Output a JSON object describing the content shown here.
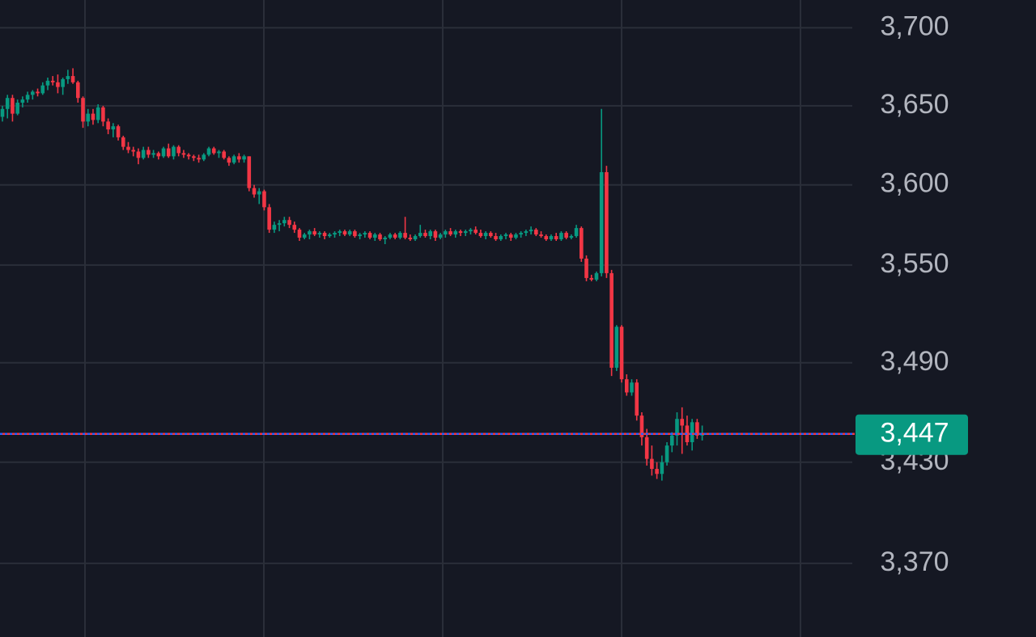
{
  "chart_data": {
    "type": "candlestick",
    "log_scale": true,
    "grid": true,
    "up_color": "#089981",
    "down_color": "#f23645",
    "ylim": [
      3327,
      3718
    ],
    "yticks": [
      {
        "value": 3700,
        "label": "3,700"
      },
      {
        "value": 3650,
        "label": "3,650"
      },
      {
        "value": 3600,
        "label": "3,600"
      },
      {
        "value": 3550,
        "label": "3,550"
      },
      {
        "value": 3490,
        "label": "3,490"
      },
      {
        "value": 3430,
        "label": "3,430"
      },
      {
        "value": 3370,
        "label": "3,370"
      }
    ],
    "last_price": {
      "value": 3447,
      "label": "3,447"
    },
    "candles": [
      [
        3643,
        3650,
        3640,
        3648
      ],
      [
        3648,
        3657,
        3642,
        3655
      ],
      [
        3655,
        3657,
        3640,
        3645
      ],
      [
        3645,
        3654,
        3644,
        3652
      ],
      [
        3652,
        3656,
        3649,
        3654
      ],
      [
        3654,
        3659,
        3652,
        3657
      ],
      [
        3657,
        3660,
        3654,
        3659
      ],
      [
        3659,
        3661,
        3656,
        3658
      ],
      [
        3658,
        3665,
        3657,
        3663
      ],
      [
        3663,
        3668,
        3660,
        3666
      ],
      [
        3666,
        3669,
        3663,
        3665
      ],
      [
        3665,
        3670,
        3658,
        3662
      ],
      [
        3662,
        3668,
        3657,
        3667
      ],
      [
        3667,
        3673,
        3664,
        3669
      ],
      [
        3669,
        3674,
        3664,
        3665
      ],
      [
        3665,
        3666,
        3652,
        3655
      ],
      [
        3655,
        3656,
        3636,
        3640
      ],
      [
        3640,
        3648,
        3637,
        3645
      ],
      [
        3645,
        3648,
        3638,
        3641
      ],
      [
        3641,
        3651,
        3639,
        3649
      ],
      [
        3649,
        3650,
        3637,
        3640
      ],
      [
        3640,
        3642,
        3632,
        3635
      ],
      [
        3635,
        3639,
        3630,
        3637
      ],
      [
        3637,
        3638,
        3628,
        3630
      ],
      [
        3630,
        3631,
        3622,
        3624
      ],
      [
        3624,
        3627,
        3620,
        3622
      ],
      [
        3622,
        3624,
        3618,
        3621
      ],
      [
        3621,
        3623,
        3613,
        3617
      ],
      [
        3617,
        3624,
        3616,
        3622
      ],
      [
        3622,
        3624,
        3617,
        3619
      ],
      [
        3619,
        3622,
        3617,
        3620
      ],
      [
        3620,
        3621,
        3616,
        3618
      ],
      [
        3618,
        3624,
        3617,
        3623
      ],
      [
        3623,
        3626,
        3617,
        3618
      ],
      [
        3618,
        3625,
        3616,
        3624
      ],
      [
        3624,
        3625,
        3618,
        3620
      ],
      [
        3620,
        3622,
        3617,
        3619
      ],
      [
        3619,
        3620,
        3616,
        3618
      ],
      [
        3618,
        3619,
        3615,
        3617
      ],
      [
        3617,
        3619,
        3614,
        3616
      ],
      [
        3616,
        3620,
        3615,
        3619
      ],
      [
        3619,
        3624,
        3618,
        3623
      ],
      [
        3623,
        3624,
        3619,
        3620
      ],
      [
        3620,
        3622,
        3617,
        3621
      ],
      [
        3621,
        3622,
        3616,
        3617
      ],
      [
        3617,
        3618,
        3612,
        3614
      ],
      [
        3614,
        3619,
        3613,
        3618
      ],
      [
        3618,
        3620,
        3614,
        3616
      ],
      [
        3616,
        3619,
        3614,
        3618
      ],
      [
        3618,
        3618,
        3596,
        3598
      ],
      [
        3598,
        3600,
        3592,
        3594
      ],
      [
        3594,
        3598,
        3588,
        3596
      ],
      [
        3596,
        3597,
        3584,
        3586
      ],
      [
        3586,
        3588,
        3570,
        3572
      ],
      [
        3572,
        3577,
        3570,
        3575
      ],
      [
        3575,
        3578,
        3571,
        3576
      ],
      [
        3576,
        3580,
        3574,
        3578
      ],
      [
        3578,
        3580,
        3573,
        3575
      ],
      [
        3575,
        3577,
        3570,
        3572
      ],
      [
        3572,
        3573,
        3565,
        3567
      ],
      [
        3567,
        3570,
        3566,
        3569
      ],
      [
        3569,
        3572,
        3566,
        3571
      ],
      [
        3571,
        3573,
        3568,
        3569
      ],
      [
        3569,
        3571,
        3567,
        3570
      ],
      [
        3570,
        3571,
        3566,
        3568
      ],
      [
        3568,
        3570,
        3567,
        3569
      ],
      [
        3569,
        3571,
        3567,
        3570
      ],
      [
        3570,
        3572,
        3568,
        3571
      ],
      [
        3571,
        3572,
        3568,
        3569
      ],
      [
        3569,
        3572,
        3568,
        3571
      ],
      [
        3571,
        3572,
        3567,
        3568
      ],
      [
        3568,
        3570,
        3566,
        3569
      ],
      [
        3569,
        3571,
        3567,
        3570
      ],
      [
        3570,
        3571,
        3566,
        3567
      ],
      [
        3567,
        3570,
        3565,
        3569
      ],
      [
        3569,
        3570,
        3565,
        3566
      ],
      [
        3566,
        3568,
        3563,
        3567
      ],
      [
        3567,
        3570,
        3566,
        3569
      ],
      [
        3569,
        3570,
        3566,
        3567
      ],
      [
        3567,
        3571,
        3566,
        3570
      ],
      [
        3570,
        3580,
        3566,
        3567
      ],
      [
        3567,
        3569,
        3565,
        3566
      ],
      [
        3566,
        3569,
        3565,
        3568
      ],
      [
        3568,
        3575,
        3567,
        3570
      ],
      [
        3570,
        3572,
        3567,
        3568
      ],
      [
        3568,
        3572,
        3566,
        3571
      ],
      [
        3571,
        3572,
        3565,
        3567
      ],
      [
        3567,
        3570,
        3566,
        3569
      ],
      [
        3569,
        3572,
        3567,
        3571
      ],
      [
        3571,
        3573,
        3568,
        3569
      ],
      [
        3569,
        3572,
        3567,
        3571
      ],
      [
        3571,
        3572,
        3568,
        3570
      ],
      [
        3570,
        3572,
        3568,
        3571
      ],
      [
        3571,
        3573,
        3569,
        3572
      ],
      [
        3572,
        3574,
        3569,
        3570
      ],
      [
        3570,
        3572,
        3567,
        3568
      ],
      [
        3568,
        3571,
        3566,
        3570
      ],
      [
        3570,
        3571,
        3567,
        3568
      ],
      [
        3568,
        3570,
        3565,
        3566
      ],
      [
        3566,
        3569,
        3565,
        3568
      ],
      [
        3568,
        3570,
        3566,
        3569
      ],
      [
        3569,
        3570,
        3565,
        3567
      ],
      [
        3567,
        3570,
        3566,
        3569
      ],
      [
        3569,
        3571,
        3567,
        3570
      ],
      [
        3570,
        3572,
        3568,
        3571
      ],
      [
        3571,
        3574,
        3569,
        3572
      ],
      [
        3572,
        3573,
        3568,
        3569
      ],
      [
        3569,
        3571,
        3567,
        3568
      ],
      [
        3568,
        3569,
        3565,
        3566
      ],
      [
        3566,
        3569,
        3565,
        3568
      ],
      [
        3568,
        3570,
        3565,
        3566
      ],
      [
        3566,
        3571,
        3565,
        3570
      ],
      [
        3570,
        3571,
        3566,
        3567
      ],
      [
        3567,
        3569,
        3566,
        3568
      ],
      [
        3568,
        3575,
        3567,
        3573
      ],
      [
        3573,
        3574,
        3552,
        3554
      ],
      [
        3554,
        3556,
        3540,
        3542
      ],
      [
        3542,
        3544,
        3540,
        3541
      ],
      [
        3541,
        3546,
        3540,
        3545
      ],
      [
        3545,
        3648,
        3543,
        3608
      ],
      [
        3608,
        3612,
        3542,
        3545
      ],
      [
        3545,
        3547,
        3482,
        3487
      ],
      [
        3487,
        3513,
        3485,
        3512
      ],
      [
        3512,
        3513,
        3478,
        3480
      ],
      [
        3480,
        3483,
        3470,
        3472
      ],
      [
        3472,
        3480,
        3470,
        3478
      ],
      [
        3478,
        3480,
        3455,
        3458
      ],
      [
        3458,
        3460,
        3440,
        3445
      ],
      [
        3445,
        3450,
        3428,
        3432
      ],
      [
        3432,
        3440,
        3422,
        3426
      ],
      [
        3426,
        3430,
        3420,
        3423
      ],
      [
        3423,
        3434,
        3419,
        3430
      ],
      [
        3430,
        3442,
        3428,
        3440
      ],
      [
        3440,
        3448,
        3436,
        3446
      ],
      [
        3446,
        3460,
        3440,
        3456
      ],
      [
        3456,
        3463,
        3435,
        3452
      ],
      [
        3452,
        3458,
        3440,
        3442
      ],
      [
        3442,
        3456,
        3437,
        3454
      ],
      [
        3454,
        3456,
        3444,
        3446
      ],
      [
        3446,
        3452,
        3443,
        3447
      ]
    ]
  }
}
